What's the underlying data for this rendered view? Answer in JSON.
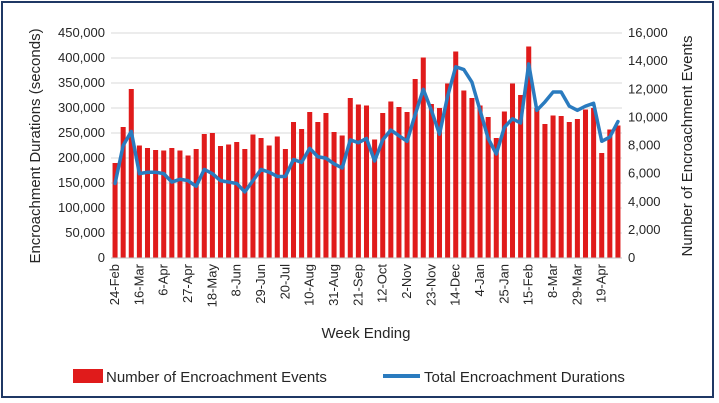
{
  "chart_data": {
    "type": "bar",
    "title": "",
    "xlabel": "Week Ending",
    "ylabel_left": "Encroachment Durations (seconds)",
    "ylabel_right": "Number of Encroachment Events",
    "ylim_left": [
      0,
      450000
    ],
    "ylim_right": [
      0,
      16000
    ],
    "yticks_left": [
      "0",
      "50,000",
      "100,000",
      "150,000",
      "200,000",
      "250,000",
      "300,000",
      "350,000",
      "400,000",
      "450,000"
    ],
    "yticks_right": [
      "0",
      "2,000",
      "4,000",
      "6,000",
      "8,000",
      "10,000",
      "12,000",
      "14,000",
      "16,000"
    ],
    "tick_labels": [
      "24-Feb",
      "16-Mar",
      "6-Apr",
      "27-Apr",
      "18-May",
      "8-Jun",
      "29-Jun",
      "20-Jul",
      "10-Aug",
      "31-Aug",
      "21-Sep",
      "12-Oct",
      "2-Nov",
      "23-Nov",
      "14-Dec",
      "4-Jan",
      "25-Jan",
      "15-Feb",
      "8-Mar",
      "29-Mar",
      "19-Apr"
    ],
    "legend_position": "bottom",
    "grid": "horizontal",
    "colors": {
      "bars": "#e01b1b",
      "line": "#2a7bbf"
    },
    "series": [
      {
        "name": "Number of Encroachment Events",
        "type": "bar",
        "axis": "left",
        "values": [
          190000,
          262000,
          338000,
          225000,
          220000,
          216000,
          215000,
          220000,
          215000,
          205000,
          218000,
          248000,
          250000,
          224000,
          227000,
          232000,
          218000,
          247000,
          240000,
          225000,
          243000,
          218000,
          272000,
          258000,
          292000,
          272000,
          290000,
          252000,
          245000,
          320000,
          307000,
          305000,
          237000,
          290000,
          313000,
          302000,
          292000,
          358000,
          401000,
          308000,
          300000,
          349000,
          413000,
          335000,
          320000,
          305000,
          282000,
          240000,
          293000,
          349000,
          326000,
          423000,
          300000,
          268000,
          285000,
          284000,
          272000,
          278000,
          297000,
          300000,
          210000,
          257000,
          265000
        ]
      },
      {
        "name": "Total Encroachment Durations",
        "type": "line",
        "axis": "right",
        "values": [
          5300,
          8000,
          9000,
          6000,
          6100,
          6100,
          6000,
          5400,
          5600,
          5500,
          5100,
          6300,
          6000,
          5500,
          5400,
          5300,
          4700,
          5500,
          6300,
          6100,
          5800,
          5800,
          7000,
          6800,
          7800,
          7200,
          7100,
          6700,
          6400,
          8400,
          8200,
          8500,
          6900,
          8400,
          9100,
          8700,
          8300,
          10200,
          12000,
          10500,
          8800,
          11500,
          13600,
          13400,
          12500,
          10500,
          8500,
          7400,
          9300,
          9900,
          9600,
          13800,
          10500,
          11100,
          11800,
          11800,
          10800,
          10500,
          10800,
          11000,
          8300,
          8600,
          9700
        ]
      }
    ]
  },
  "legend": {
    "bars_label": "Number of Encroachment Events",
    "line_label": "Total Encroachment Durations"
  }
}
